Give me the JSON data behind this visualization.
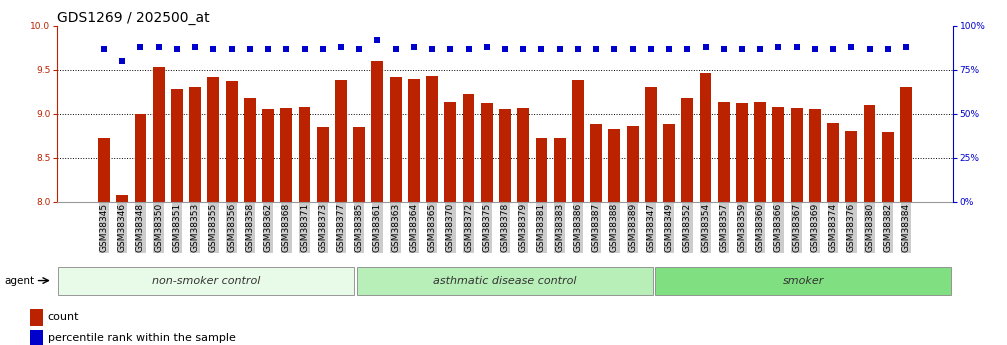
{
  "title": "GDS1269 / 202500_at",
  "categories": [
    "GSM38345",
    "GSM38346",
    "GSM38348",
    "GSM38350",
    "GSM38351",
    "GSM38353",
    "GSM38355",
    "GSM38356",
    "GSM38358",
    "GSM38362",
    "GSM38368",
    "GSM38371",
    "GSM38373",
    "GSM38377",
    "GSM38385",
    "GSM38361",
    "GSM38363",
    "GSM38364",
    "GSM38365",
    "GSM38370",
    "GSM38372",
    "GSM38375",
    "GSM38378",
    "GSM38379",
    "GSM38381",
    "GSM38383",
    "GSM38386",
    "GSM38387",
    "GSM38388",
    "GSM38389",
    "GSM38347",
    "GSM38349",
    "GSM38352",
    "GSM38354",
    "GSM38357",
    "GSM38359",
    "GSM38360",
    "GSM38366",
    "GSM38367",
    "GSM38369",
    "GSM38374",
    "GSM38376",
    "GSM38380",
    "GSM38382",
    "GSM38384"
  ],
  "bar_values": [
    8.72,
    8.08,
    9.0,
    9.53,
    9.28,
    9.3,
    9.42,
    9.37,
    9.18,
    9.06,
    9.07,
    9.08,
    8.85,
    9.39,
    8.85,
    9.6,
    9.42,
    9.4,
    9.43,
    9.14,
    9.23,
    9.12,
    9.05,
    9.07,
    8.72,
    8.72,
    9.38,
    8.88,
    8.83,
    8.86,
    9.3,
    8.88,
    9.18,
    9.46,
    9.14,
    9.12,
    9.14,
    9.08,
    9.07,
    9.05,
    8.9,
    8.8,
    9.1,
    8.79,
    9.3
  ],
  "percentile_values_pct": [
    87,
    80,
    88,
    88,
    87,
    88,
    87,
    87,
    87,
    87,
    87,
    87,
    87,
    88,
    87,
    92,
    87,
    88,
    87,
    87,
    87,
    88,
    87,
    87,
    87,
    87,
    87,
    87,
    87,
    87,
    87,
    87,
    87,
    88,
    87,
    87,
    87,
    88,
    88,
    87,
    87,
    88,
    87,
    87,
    88
  ],
  "group_labels": [
    "non-smoker control",
    "asthmatic disease control",
    "smoker"
  ],
  "group_sizes": [
    15,
    15,
    15
  ],
  "group_colors": [
    "#e8fae8",
    "#b8eeb8",
    "#80df80"
  ],
  "bar_color": "#bb2200",
  "dot_color": "#0000cc",
  "ylim_left": [
    8.0,
    10.0
  ],
  "ylim_right": [
    0,
    100
  ],
  "yticks_left": [
    8.0,
    8.5,
    9.0,
    9.5,
    10.0
  ],
  "yticks_right": [
    0,
    25,
    50,
    75,
    100
  ],
  "grid_values": [
    8.5,
    9.0,
    9.5
  ],
  "ybase": 8.0,
  "title_fontsize": 10,
  "tick_fontsize": 6.5,
  "label_fontsize": 8,
  "xtick_bg_color": "#cccccc",
  "spine_color": "#999999"
}
